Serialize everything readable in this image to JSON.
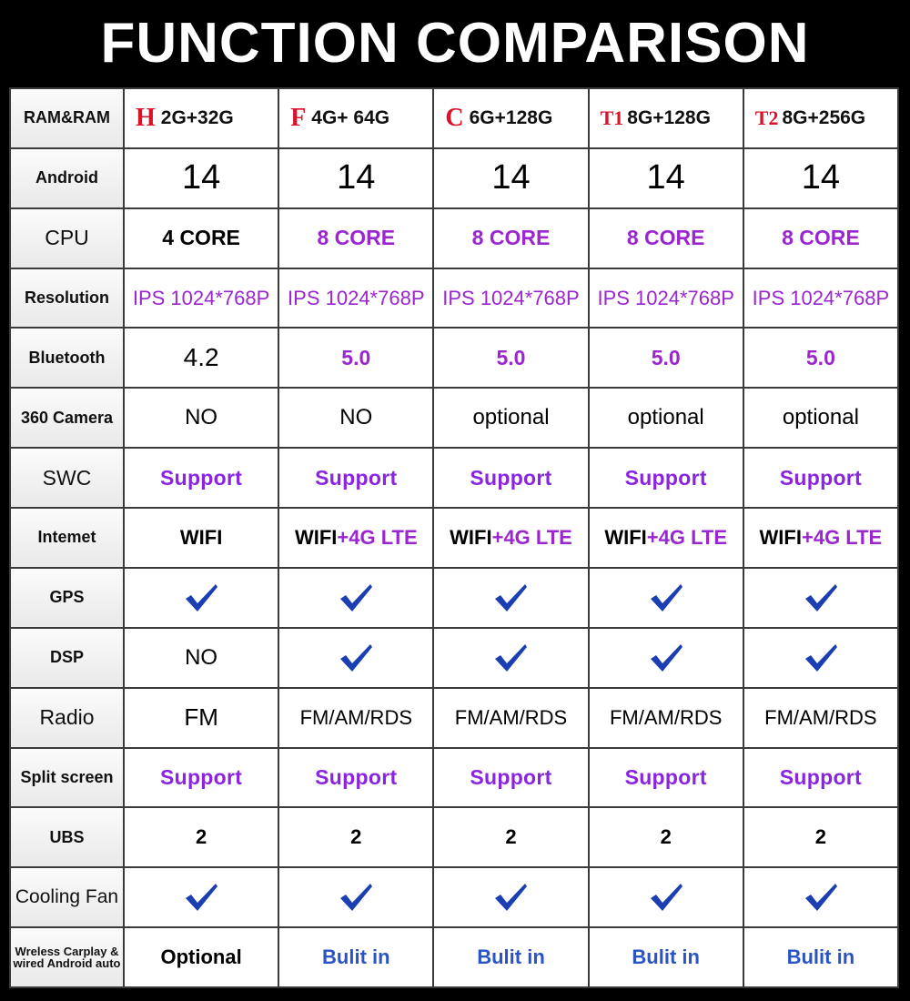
{
  "title": "FUNCTION COMPARISON",
  "models": [
    {
      "letter": "H",
      "ram": "2G+32G"
    },
    {
      "letter": "F",
      "ram": "4G+ 64G"
    },
    {
      "letter": "C",
      "ram": "6G+128G"
    },
    {
      "letter": "T1",
      "ram": "8G+128G"
    },
    {
      "letter": "T2",
      "ram": "8G+256G"
    }
  ],
  "labels": {
    "ram": "RAM&RAM",
    "android": "Android",
    "cpu": "CPU",
    "resolution": "Resolution",
    "bluetooth": "Bluetooth",
    "camera": "360 Camera",
    "swc": "SWC",
    "internet": "Intemet",
    "gps": "GPS",
    "dsp": "DSP",
    "radio": "Radio",
    "split": "Split screen",
    "ubs": "UBS",
    "fan": "Cooling Fan",
    "carplay": "Wreless Carplay & wired Android auto"
  },
  "rows": {
    "android": [
      "14",
      "14",
      "14",
      "14",
      "14"
    ],
    "cpu": [
      "4 CORE",
      "8 CORE",
      "8 CORE",
      "8 CORE",
      "8 CORE"
    ],
    "resolution": [
      "IPS 1024*768P",
      "IPS 1024*768P",
      "IPS 1024*768P",
      "IPS 1024*768P",
      "IPS 1024*768P"
    ],
    "bluetooth": [
      "4.2",
      "5.0",
      "5.0",
      "5.0",
      "5.0"
    ],
    "camera": [
      "NO",
      "NO",
      "optional",
      "optional",
      "optional"
    ],
    "swc": [
      "Support",
      "Support",
      "Support",
      "Support",
      "Support"
    ],
    "internet_wifi": [
      "WIFI",
      "WIFI",
      "WIFI",
      "WIFI",
      "WIFI"
    ],
    "internet_lte": [
      "",
      "+4G LTE",
      "+4G LTE",
      "+4G LTE",
      "+4G LTE"
    ],
    "gps": [
      "check",
      "check",
      "check",
      "check",
      "check"
    ],
    "dsp_text": "NO",
    "radio": [
      "FM",
      "FM/AM/RDS",
      "FM/AM/RDS",
      "FM/AM/RDS",
      "FM/AM/RDS"
    ],
    "split": [
      "Support",
      "Support",
      "Support",
      "Support",
      "Support"
    ],
    "ubs": [
      "2",
      "2",
      "2",
      "2",
      "2"
    ],
    "fan": [
      "check",
      "check",
      "check",
      "check",
      "check"
    ],
    "carplay": [
      "Optional",
      "Bulit in",
      "Bulit in",
      "Bulit in",
      "Bulit in"
    ]
  },
  "icons": {
    "check": "check-icon"
  },
  "colors": {
    "model_letter": "#d8132a",
    "purple": "#9b26cf",
    "support": "#8a24e0",
    "builtin": "#2a54c6",
    "check": "#1b3fb3"
  }
}
